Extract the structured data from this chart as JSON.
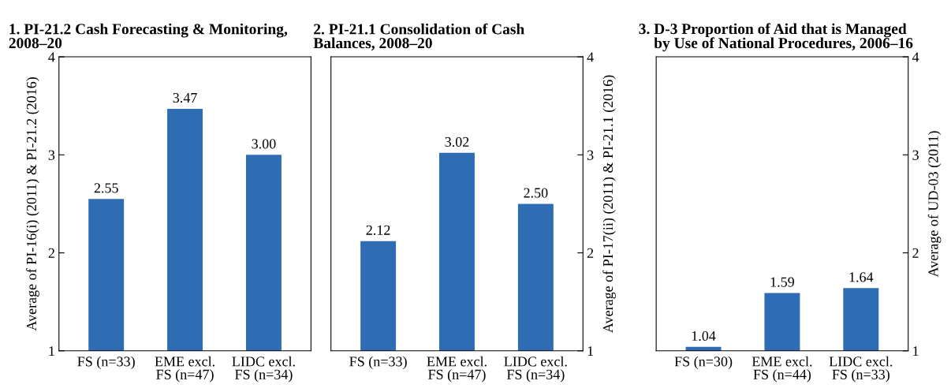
{
  "chart_data": [
    {
      "type": "bar",
      "title": "1. PI-21.2 Cash Forecasting & Monitoring,\n2008–20",
      "ylabel": "Average of PI-16(i) (2011) & PI-21.2 (2016)",
      "categories": [
        "FS (n=33)",
        "EME excl.\nFS (n=47)",
        "LIDC excl.\nFS (n=34)"
      ],
      "series": [
        {
          "color": "#2e6db4",
          "values": [
            2.55,
            3.47,
            3.0
          ],
          "value_labels": [
            "2.55",
            "3.47",
            "3.00"
          ]
        }
      ],
      "ylim": [
        1,
        4
      ],
      "yticks": [
        1,
        2,
        3,
        4
      ]
    },
    {
      "type": "bar",
      "title": "2. PI-21.1 Consolidation of Cash\nBalances, 2008–20",
      "y2label": "Average of PI-17(ii) (2011) & PI-21.1 (2016)",
      "categories": [
        "FS (n=33)",
        "EME excl.\nFS (n=47)",
        "LIDC excl.\nFS (n=34)"
      ],
      "series": [
        {
          "color": "#2e6db4",
          "axis": "y2",
          "values": [
            2.12,
            3.02,
            2.5
          ],
          "value_labels": [
            "2.12",
            "3.02",
            "2.50"
          ]
        }
      ],
      "y2lim": [
        1,
        4
      ],
      "y2ticks": [
        1,
        2,
        3,
        4
      ]
    },
    {
      "type": "bar",
      "title": "3. D-3 Proportion of Aid that is Managed\n    by Use of National Procedures, 2006–16",
      "y2label": "Average of UD-03 (2011)",
      "categories": [
        "FS (n=30)",
        "EME excl.\nFS (n=44)",
        "LIDC excl.\nFS (n=33)"
      ],
      "series": [
        {
          "color": "#2e6db4",
          "axis": "y2",
          "values": [
            1.04,
            1.59,
            1.64
          ],
          "value_labels": [
            "1.04",
            "1.59",
            "1.64"
          ]
        }
      ],
      "y2lim": [
        1,
        4
      ],
      "y2ticks": [
        1,
        2,
        3,
        4
      ]
    }
  ]
}
